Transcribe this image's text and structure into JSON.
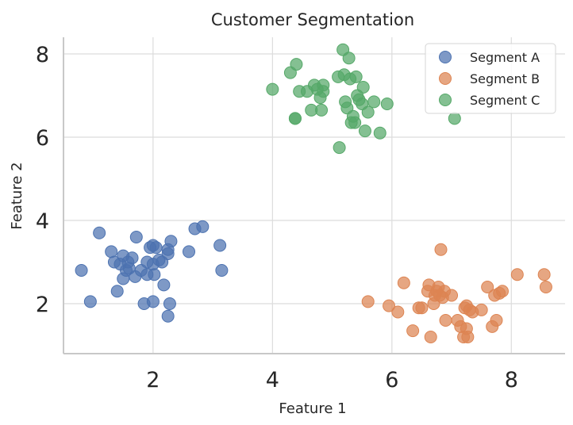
{
  "chart_data": {
    "type": "scatter",
    "title": "Customer Segmentation",
    "xlabel": "Feature 1",
    "ylabel": "Feature 2",
    "xlim": [
      0.5,
      8.9
    ],
    "ylim": [
      0.8,
      8.4
    ],
    "xticks": [
      2,
      4,
      6,
      8
    ],
    "yticks": [
      2,
      4,
      6,
      8
    ],
    "grid": true,
    "legend_position": "top-right",
    "series": [
      {
        "name": "Segment A",
        "color": "#4C72B0",
        "points": [
          [
            0.8,
            2.8
          ],
          [
            0.95,
            2.05
          ],
          [
            1.1,
            3.7
          ],
          [
            1.3,
            3.25
          ],
          [
            1.35,
            3.0
          ],
          [
            1.4,
            2.3
          ],
          [
            1.45,
            2.95
          ],
          [
            1.5,
            2.6
          ],
          [
            1.5,
            3.15
          ],
          [
            1.55,
            2.8
          ],
          [
            1.58,
            3.0
          ],
          [
            1.6,
            2.85
          ],
          [
            1.65,
            3.1
          ],
          [
            1.7,
            2.65
          ],
          [
            1.72,
            3.6
          ],
          [
            1.8,
            2.8
          ],
          [
            1.85,
            2.0
          ],
          [
            1.9,
            2.7
          ],
          [
            1.9,
            3.0
          ],
          [
            1.95,
            3.35
          ],
          [
            2.0,
            3.4
          ],
          [
            2.0,
            2.05
          ],
          [
            2.0,
            2.95
          ],
          [
            2.02,
            2.7
          ],
          [
            2.05,
            3.35
          ],
          [
            2.1,
            3.05
          ],
          [
            2.15,
            3.0
          ],
          [
            2.18,
            2.45
          ],
          [
            2.25,
            3.3
          ],
          [
            2.25,
            3.2
          ],
          [
            2.25,
            1.7
          ],
          [
            2.28,
            2.0
          ],
          [
            2.3,
            3.5
          ],
          [
            2.6,
            3.25
          ],
          [
            2.7,
            3.8
          ],
          [
            2.83,
            3.85
          ],
          [
            3.12,
            3.4
          ],
          [
            3.15,
            2.8
          ]
        ]
      },
      {
        "name": "Segment B",
        "color": "#DD8452",
        "points": [
          [
            5.6,
            2.05
          ],
          [
            5.95,
            1.95
          ],
          [
            6.1,
            1.8
          ],
          [
            6.2,
            2.5
          ],
          [
            6.35,
            1.35
          ],
          [
            6.45,
            1.9
          ],
          [
            6.5,
            1.9
          ],
          [
            6.6,
            2.3
          ],
          [
            6.62,
            2.45
          ],
          [
            6.65,
            1.2
          ],
          [
            6.7,
            2.0
          ],
          [
            6.72,
            2.2
          ],
          [
            6.75,
            2.3
          ],
          [
            6.78,
            2.4
          ],
          [
            6.8,
            2.2
          ],
          [
            6.82,
            3.3
          ],
          [
            6.85,
            2.15
          ],
          [
            6.88,
            2.3
          ],
          [
            6.9,
            1.6
          ],
          [
            7.0,
            2.2
          ],
          [
            7.1,
            1.6
          ],
          [
            7.15,
            1.45
          ],
          [
            7.2,
            1.2
          ],
          [
            7.22,
            1.9
          ],
          [
            7.25,
            1.4
          ],
          [
            7.25,
            1.95
          ],
          [
            7.27,
            1.2
          ],
          [
            7.3,
            1.85
          ],
          [
            7.35,
            1.8
          ],
          [
            7.5,
            1.85
          ],
          [
            7.6,
            2.4
          ],
          [
            7.68,
            1.45
          ],
          [
            7.72,
            2.2
          ],
          [
            7.75,
            1.6
          ],
          [
            7.8,
            2.25
          ],
          [
            7.85,
            2.3
          ],
          [
            8.1,
            2.7
          ],
          [
            8.55,
            2.7
          ],
          [
            8.58,
            2.4
          ]
        ]
      },
      {
        "name": "Segment C",
        "color": "#55A868",
        "points": [
          [
            4.0,
            7.15
          ],
          [
            4.3,
            7.55
          ],
          [
            4.38,
            6.45
          ],
          [
            4.38,
            6.45
          ],
          [
            4.4,
            7.75
          ],
          [
            4.45,
            7.1
          ],
          [
            4.58,
            7.1
          ],
          [
            4.65,
            6.65
          ],
          [
            4.7,
            7.25
          ],
          [
            4.75,
            7.15
          ],
          [
            4.8,
            6.95
          ],
          [
            4.82,
            6.65
          ],
          [
            4.85,
            7.1
          ],
          [
            4.85,
            7.25
          ],
          [
            5.1,
            7.45
          ],
          [
            5.12,
            5.75
          ],
          [
            5.18,
            8.1
          ],
          [
            5.2,
            7.5
          ],
          [
            5.22,
            6.85
          ],
          [
            5.25,
            6.7
          ],
          [
            5.28,
            7.9
          ],
          [
            5.3,
            7.4
          ],
          [
            5.32,
            6.35
          ],
          [
            5.35,
            6.5
          ],
          [
            5.38,
            6.35
          ],
          [
            5.4,
            7.45
          ],
          [
            5.42,
            7.0
          ],
          [
            5.45,
            6.9
          ],
          [
            5.5,
            6.8
          ],
          [
            5.52,
            7.2
          ],
          [
            5.55,
            6.15
          ],
          [
            5.6,
            6.6
          ],
          [
            5.7,
            6.85
          ],
          [
            5.8,
            6.1
          ],
          [
            5.92,
            6.8
          ],
          [
            7.05,
            6.45
          ]
        ]
      }
    ]
  }
}
